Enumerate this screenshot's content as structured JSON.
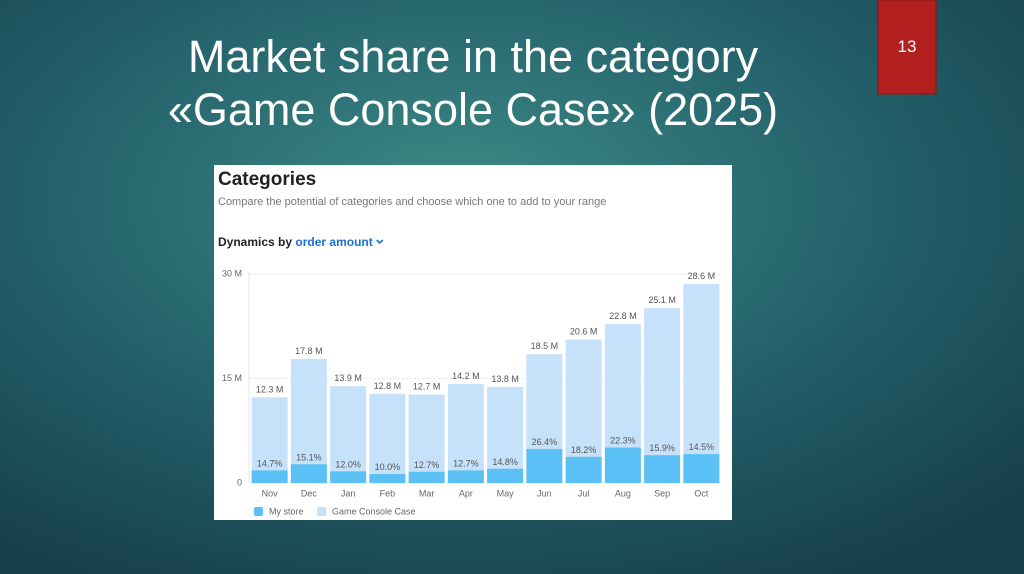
{
  "slide_number": "13",
  "title_lines": [
    "Market share in the category",
    "«Game Console Case» (2025)"
  ],
  "panel": {
    "heading": "Categories",
    "subtitle": "Compare the potential of categories and choose which one to add to your range",
    "dynamics_label": "Dynamics by",
    "dynamics_metric": "order amount"
  },
  "chart_data": {
    "type": "bar",
    "categories": [
      "Nov",
      "Dec",
      "Jan",
      "Feb",
      "Mar",
      "Apr",
      "May",
      "Jun",
      "Jul",
      "Aug",
      "Sep",
      "Oct"
    ],
    "series": [
      {
        "name": "My store",
        "color": "#5bc0f5",
        "values": [
          14.7,
          15.1,
          12.0,
          10.0,
          12.7,
          12.7,
          14.8,
          26.4,
          18.2,
          22.3,
          15.9,
          14.5
        ],
        "value_labels": [
          "14.7%",
          "15.1%",
          "12.0%",
          "10.0%",
          "12.7%",
          "12.7%",
          "14.8%",
          "26.4%",
          "18.2%",
          "22.3%",
          "15.9%",
          "14.5%"
        ]
      },
      {
        "name": "Game Console Case",
        "color": "#c6e1fa",
        "values": [
          12.3,
          17.8,
          13.9,
          12.8,
          12.7,
          14.2,
          13.8,
          18.5,
          20.6,
          22.8,
          25.1,
          28.6
        ],
        "value_labels": [
          "12.3 M",
          "17.8 M",
          "13.9 M",
          "12.8 M",
          "12.7 M",
          "14.2 M",
          "13.8 M",
          "18.5 M",
          "20.6 M",
          "22.8 M",
          "25.1 M",
          "28.6 M"
        ]
      }
    ],
    "ylim": [
      0,
      30
    ],
    "yticks": [
      0,
      {
        "value": 15,
        "label": "15 M"
      },
      {
        "value": 30,
        "label": "30 M"
      }
    ],
    "grid": true
  }
}
